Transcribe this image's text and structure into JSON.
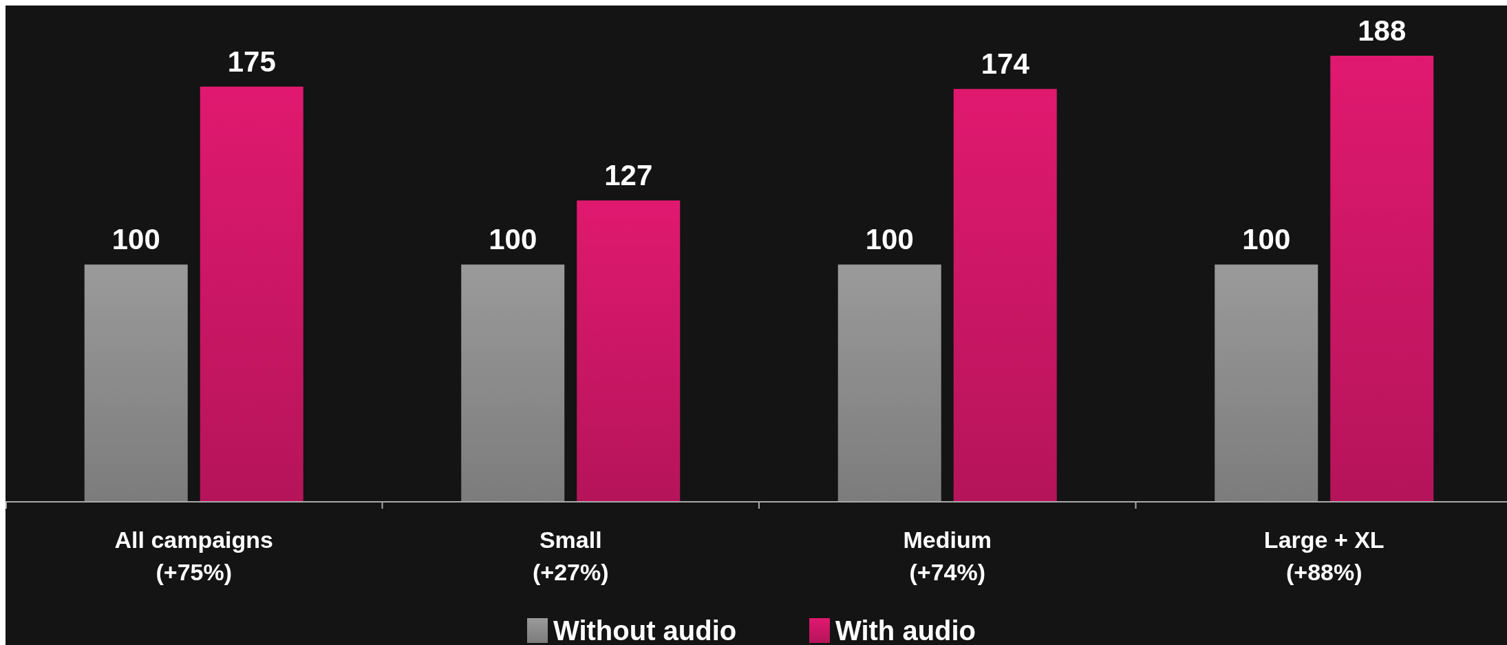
{
  "chart_data": {
    "type": "bar",
    "categories": [
      "All campaigns\n(+75%)",
      "Small\n(+27%)",
      "Medium\n(+74%)",
      "Large + XL\n(+88%)"
    ],
    "series": [
      {
        "name": "Without audio",
        "color": "#9a9a9a",
        "values": [
          100,
          100,
          100,
          100
        ]
      },
      {
        "name": "With audio",
        "color": "#e0196f",
        "values": [
          175,
          127,
          174,
          188
        ]
      }
    ],
    "data_labels": true,
    "legend": "bottom",
    "grid": false
  }
}
